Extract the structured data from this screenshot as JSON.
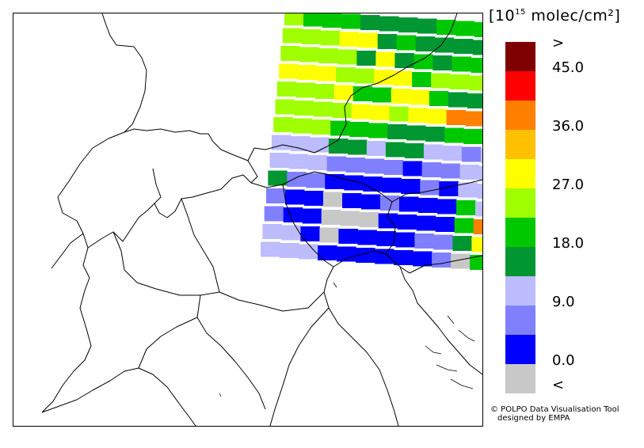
{
  "unit": {
    "prefix": "[10",
    "exponent": "15",
    "suffix": " molec/cm²]"
  },
  "legend": {
    "colors": [
      "#7f0000",
      "#ff0000",
      "#ff7f00",
      "#ffc000",
      "#ffff00",
      "#a0ff00",
      "#00c800",
      "#009632",
      "#bcbcff",
      "#8080ff",
      "#0000ff",
      "#c8c8c8"
    ],
    "labels": [
      ">",
      "45.0",
      "36.0",
      "27.0",
      "18.0",
      "9.0",
      "0.0",
      "<"
    ]
  },
  "credit": {
    "line1": "© POLPO Data Visualisation Tool",
    "line2": "designed by EMPA"
  },
  "swath": {
    "rows": [
      [
        "lg",
        "mg",
        "mg",
        "mg",
        "dg",
        "dg",
        "dg",
        "dg",
        "mg",
        "mg",
        "mg",
        "mg",
        "dg",
        "dg"
      ],
      [
        "lg",
        "lg",
        "lg",
        "yl",
        "yl",
        "dg",
        "mg",
        "dg",
        "dg",
        "dg",
        "dg",
        "mg",
        "mg",
        "dg"
      ],
      [
        "lg",
        "lg",
        "lg",
        "lg",
        "dg",
        "yl",
        "dg",
        "mg",
        "dg",
        "mg",
        "mg",
        "mg",
        "lg",
        "mg"
      ],
      [
        "yl",
        "yl",
        "yl",
        "lg",
        "lg",
        "yl",
        "yl",
        "mg",
        "lg",
        "lg",
        "lg",
        "lg",
        "yl",
        "mg"
      ],
      [
        "lg",
        "lg",
        "lg",
        "yl",
        "mg",
        "mg",
        "yl",
        "yl",
        "mg",
        "dg",
        "dg",
        "lg",
        "mg",
        "rd"
      ],
      [
        "lg",
        "lg",
        "lg",
        "lg",
        "yl",
        "yl",
        "lg",
        "yl",
        "yl",
        "or",
        "or",
        "yl",
        "dg",
        "or"
      ],
      [
        "lg",
        "lg",
        "lg",
        "mg",
        "mg",
        "mg",
        "dg",
        "dg",
        "dg",
        "mg",
        "mg",
        "dg",
        "yl",
        "gy"
      ],
      [
        "lv",
        "lv",
        "lv",
        "dg",
        "dg",
        "lv",
        "dg",
        "dg",
        "lv",
        "lv",
        "mv",
        "lv",
        "dg",
        "gy"
      ],
      [
        "lv",
        "lv",
        "lv",
        "mv",
        "mv",
        "mv",
        "mv",
        "bl",
        "mv",
        "mv",
        "lv",
        "lv",
        "mv",
        "gy"
      ],
      [
        "dg",
        "mv",
        "mv",
        "bl",
        "bl",
        "bl",
        "bl",
        "bl",
        "mv",
        "bl",
        "lv",
        "lv",
        "lv",
        "lv"
      ],
      [
        "mv",
        "bl",
        "bl",
        "gy",
        "bl",
        "bl",
        "mv",
        "bl",
        "bl",
        "bl",
        "mg",
        "lv",
        "dg",
        "mg"
      ],
      [
        "mv",
        "bl",
        "bl",
        "gy",
        "gy",
        "gy",
        "bl",
        "bl",
        "bl",
        "bl",
        "mg",
        "or",
        "or",
        "mg"
      ],
      [
        "lv",
        "lv",
        "bl",
        "gy",
        "bl",
        "bl",
        "bl",
        "bl",
        "mv",
        "mv",
        "dg",
        "yl",
        "yl",
        "yl"
      ],
      [
        "lv",
        "lv",
        "lv",
        "bl",
        "bl",
        "bl",
        "bl",
        "bl",
        "bl",
        "mv",
        "gy",
        "mg",
        "lg",
        "mg"
      ]
    ]
  }
}
